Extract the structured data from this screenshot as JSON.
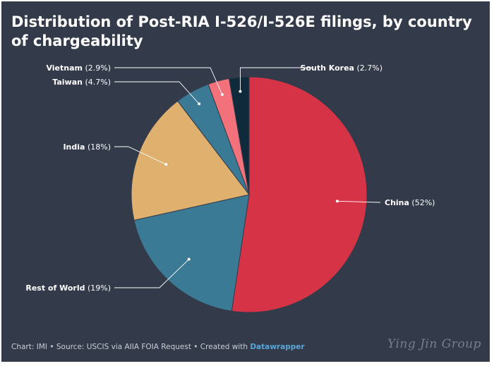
{
  "chart_data": {
    "type": "pie",
    "title": "Distribution of Post-RIA I-526/I-526E filings, by country of chargeability",
    "slices": [
      {
        "label": "China",
        "value": 52,
        "display": "(52%)",
        "color": "#d63446"
      },
      {
        "label": "Rest of World",
        "value": 19,
        "display": "(19%)",
        "color": "#3a7a95"
      },
      {
        "label": "India",
        "value": 18,
        "display": "(18%)",
        "color": "#e0b06e"
      },
      {
        "label": "Taiwan",
        "value": 4.7,
        "display": "(4.7%)",
        "color": "#3a7a95"
      },
      {
        "label": "Vietnam",
        "value": 2.9,
        "display": "(2.9%)",
        "color": "#f2717a"
      },
      {
        "label": "South Korea",
        "value": 2.7,
        "display": "(2.7%)",
        "color": "#0f2a3b"
      }
    ]
  },
  "footer": {
    "text": "Chart: IMI • Source: USCIS via AIIA FOIA Request • Created with",
    "link": "Datawrapper"
  },
  "watermark": "Ying Jin Group",
  "colors": {
    "background": "#333b4b",
    "text": "#ffffff",
    "link": "#5aa6d6"
  }
}
